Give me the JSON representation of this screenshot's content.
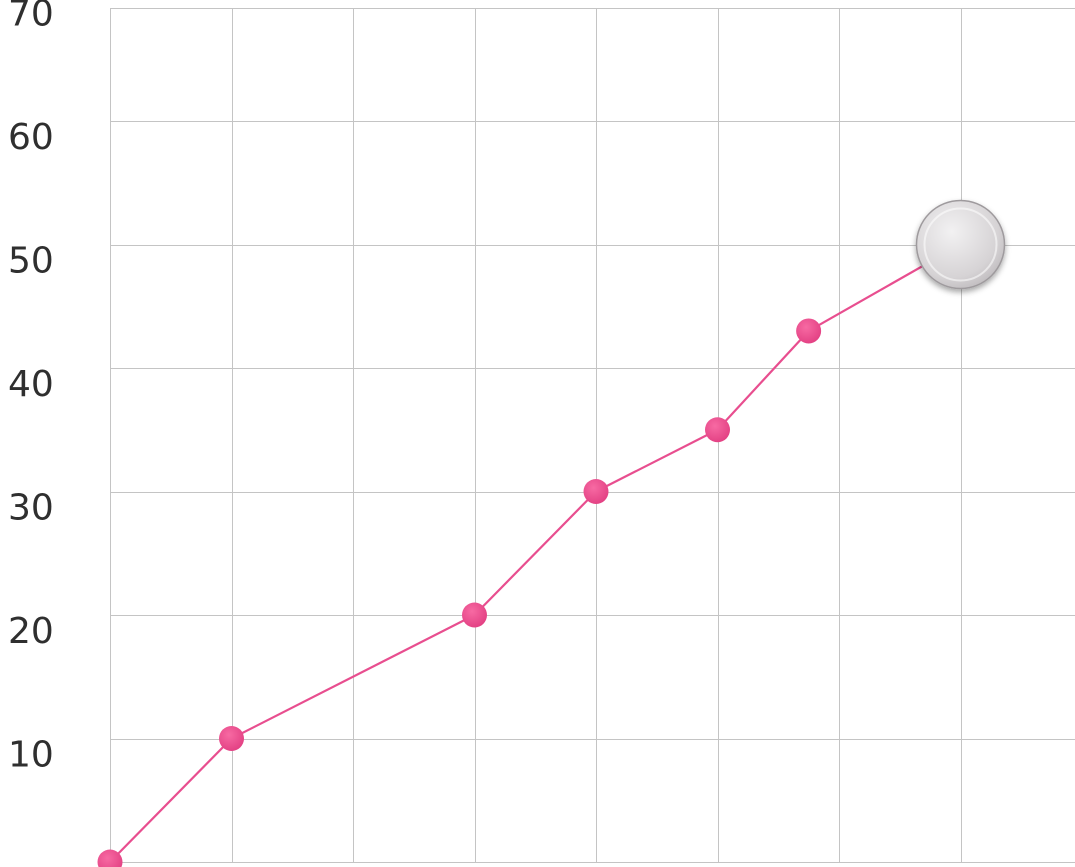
{
  "chart_data": {
    "type": "line",
    "title": "",
    "xlabel": "",
    "ylabel": "",
    "x_ticks_shown": false,
    "y_ticks": [
      10,
      20,
      30,
      40,
      50,
      60,
      70
    ],
    "ylim": [
      0,
      70
    ],
    "xlim": [
      0,
      8
    ],
    "grid": true,
    "legend": "none",
    "series": [
      {
        "x": [
          0,
          1,
          3,
          4,
          5,
          5.75,
          7
        ],
        "y": [
          0,
          10,
          20,
          30,
          35,
          43,
          50
        ]
      }
    ],
    "highlighted_point_index": 6,
    "colors": {
      "line": "#e84e8f",
      "marker": "#ef4a8f",
      "highlight_marker": "#d9d6d8",
      "grid": "#c4c4c4",
      "tick_label": "#2f2f2f"
    }
  }
}
